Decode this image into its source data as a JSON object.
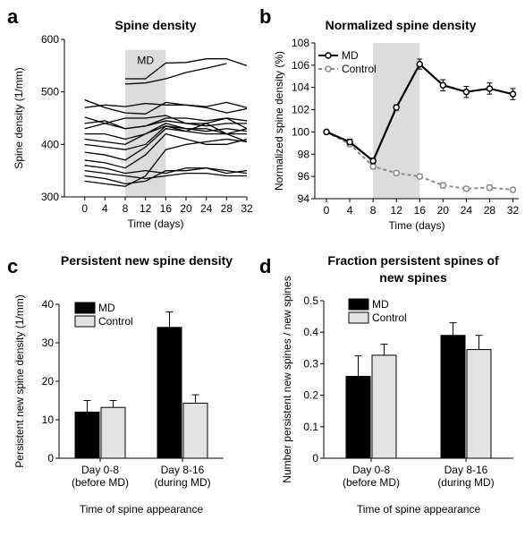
{
  "panels": {
    "a": {
      "letter": "a"
    },
    "b": {
      "letter": "b"
    },
    "c": {
      "letter": "c"
    },
    "d": {
      "letter": "d"
    }
  },
  "chart_data": [
    {
      "id": "a",
      "type": "line",
      "title": "Spine density",
      "xlabel": "Time (days)",
      "ylabel": "Spine density (1/mm)",
      "xlim": [
        -4,
        32
      ],
      "ylim": [
        300,
        600
      ],
      "xticks": [
        0,
        4,
        8,
        12,
        16,
        20,
        24,
        28,
        32
      ],
      "yticks": [
        300,
        400,
        500,
        600
      ],
      "shade": {
        "from": 8,
        "to": 16,
        "label": "MD",
        "color": "#dcdcdc"
      },
      "line_color": "#000000",
      "x": [
        0,
        4,
        8,
        12,
        16,
        20,
        24,
        28,
        32
      ],
      "series": [
        {
          "values": [
            null,
            null,
            525,
            525,
            555,
            556,
            563,
            563,
            550
          ]
        },
        {
          "values": [
            null,
            null,
            515,
            517,
            525,
            537,
            545,
            554,
            null
          ]
        },
        {
          "values": [
            485,
            470,
            460,
            458,
            480,
            475,
            472,
            480,
            470
          ]
        },
        {
          "values": [
            470,
            475,
            472,
            478,
            475,
            475,
            470,
            460,
            468
          ]
        },
        {
          "values": [
            452,
            440,
            430,
            435,
            450,
            450,
            445,
            450,
            445
          ]
        },
        {
          "values": [
            440,
            445,
            430,
            435,
            445,
            440,
            435,
            440,
            440
          ]
        },
        {
          "values": [
            430,
            440,
            450,
            450,
            455,
            440,
            440,
            450,
            430
          ]
        },
        {
          "values": [
            420,
            420,
            410,
            420,
            435,
            430,
            425,
            430,
            425
          ]
        },
        {
          "values": [
            410,
            405,
            400,
            420,
            440,
            430,
            430,
            420,
            430
          ]
        },
        {
          "values": [
            400,
            395,
            390,
            400,
            435,
            425,
            420,
            420,
            405
          ]
        },
        {
          "values": [
            385,
            380,
            370,
            395,
            430,
            425,
            440,
            420,
            420
          ]
        },
        {
          "values": [
            370,
            365,
            355,
            380,
            420,
            410,
            400,
            400,
            410
          ]
        },
        {
          "values": [
            360,
            355,
            345,
            350,
            345,
            355,
            355,
            350,
            345
          ]
        },
        {
          "values": [
            350,
            345,
            340,
            335,
            340,
            345,
            345,
            340,
            340
          ]
        },
        {
          "values": [
            340,
            335,
            325,
            330,
            350,
            350,
            355,
            345,
            350
          ]
        },
        {
          "values": [
            330,
            325,
            320,
            340,
            390,
            400,
            405,
            410,
            405
          ]
        }
      ]
    },
    {
      "id": "b",
      "type": "line",
      "title": "Normalized spine density",
      "xlabel": "Time (days)",
      "ylabel": "Normalized spine density (%)",
      "xlim": [
        -2,
        33
      ],
      "ylim": [
        94,
        108
      ],
      "xticks": [
        0,
        4,
        8,
        12,
        16,
        20,
        24,
        28,
        32
      ],
      "yticks": [
        94,
        96,
        98,
        100,
        102,
        104,
        106,
        108
      ],
      "shade": {
        "from": 8,
        "to": 16,
        "color": "#dcdcdc"
      },
      "legend_position": "top-left",
      "x": [
        0,
        4,
        8,
        12,
        16,
        20,
        24,
        28,
        32
      ],
      "series": [
        {
          "name": "MD",
          "color": "#000000",
          "dashed": false,
          "values": [
            100,
            99.1,
            97.4,
            102.2,
            106.1,
            104.2,
            103.6,
            103.9,
            103.4
          ],
          "errors": [
            0,
            0.25,
            0.25,
            0.25,
            0.45,
            0.5,
            0.5,
            0.5,
            0.5
          ]
        },
        {
          "name": "Control",
          "color": "#8c8c8c",
          "dashed": true,
          "values": [
            100,
            98.9,
            96.9,
            96.3,
            96.0,
            95.2,
            94.9,
            95.0,
            94.8
          ],
          "errors": [
            0,
            0.2,
            0.25,
            0.2,
            0.2,
            0.25,
            0.2,
            0.25,
            0.2
          ]
        }
      ]
    },
    {
      "id": "c",
      "type": "bar",
      "title": "Persistent new spine density",
      "xlabel": "Time of spine appearance",
      "ylabel": "Persistent new spine density  (1/mm)",
      "ylim": [
        0,
        40
      ],
      "yticks": [
        0,
        10,
        20,
        30,
        40
      ],
      "legend_position": "top-left",
      "categories": [
        [
          "Day 0-8",
          "(before MD)"
        ],
        [
          "Day 8-16",
          "(during MD)"
        ]
      ],
      "series": [
        {
          "name": "MD",
          "color": "#000000",
          "values": [
            12,
            34
          ],
          "errors": [
            3,
            4
          ]
        },
        {
          "name": "Control",
          "color": "#e3e3e3",
          "values": [
            13.2,
            14.3
          ],
          "errors": [
            1.8,
            2.2
          ]
        }
      ]
    },
    {
      "id": "d",
      "type": "bar",
      "title": [
        "Fraction persistent spines of",
        "new spines"
      ],
      "xlabel": "Time of spine appearance",
      "ylabel": "Number persistent new spines / new spines",
      "ylim": [
        0,
        0.5
      ],
      "yticks": [
        0,
        0.1,
        0.2,
        0.3,
        0.4,
        0.5
      ],
      "legend_position": "top-left",
      "categories": [
        [
          "Day 0-8",
          "(before MD)"
        ],
        [
          "Day 8-16",
          "(during MD)"
        ]
      ],
      "series": [
        {
          "name": "MD",
          "color": "#000000",
          "values": [
            0.26,
            0.39
          ],
          "errors": [
            0.065,
            0.04
          ]
        },
        {
          "name": "Control",
          "color": "#e3e3e3",
          "values": [
            0.327,
            0.345
          ],
          "errors": [
            0.035,
            0.045
          ]
        }
      ]
    }
  ]
}
